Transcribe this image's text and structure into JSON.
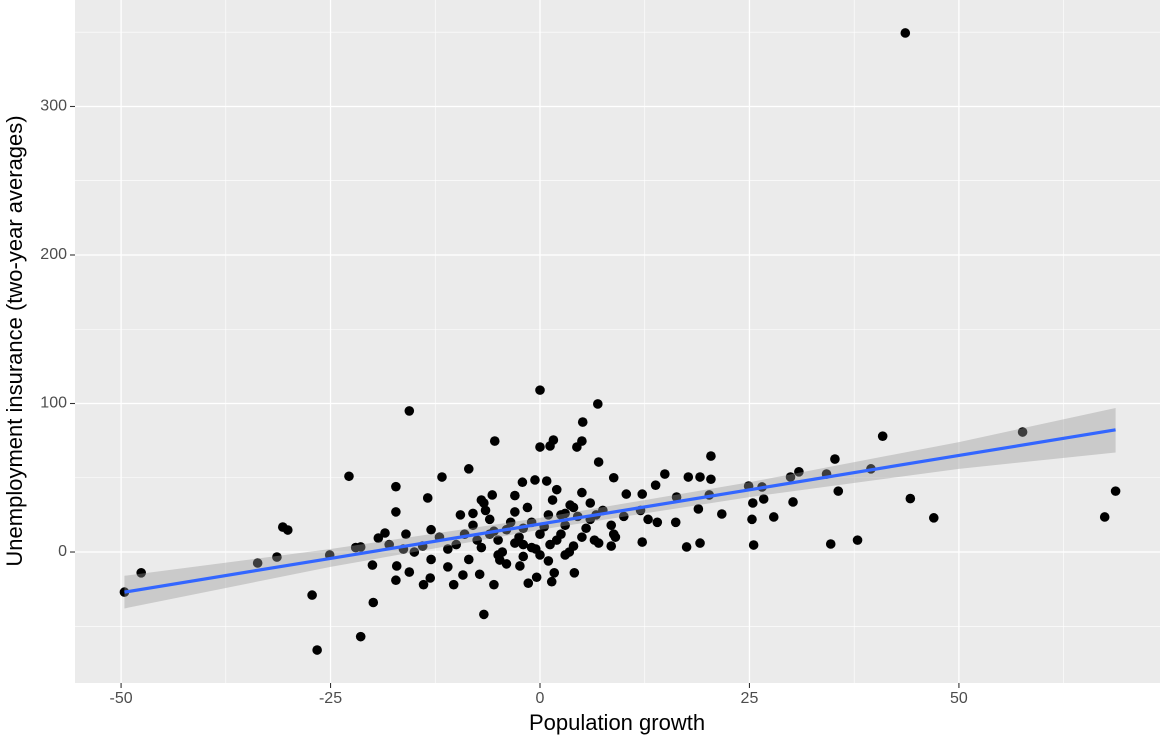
{
  "chart_data": {
    "type": "scatter",
    "x_label": "Population growth",
    "y_label": "Unemployment insurance (two-year averages)",
    "xlim": [
      -55.5,
      74
    ],
    "ylim": [
      -88.2,
      371.7
    ],
    "xticks": [
      -50,
      -25,
      0,
      25,
      50
    ],
    "yticks": [
      0,
      100,
      200,
      300
    ],
    "x_minor_grid": [
      -37.5,
      -12.5,
      12.5,
      37.5,
      62.5
    ],
    "y_minor_grid": [
      -50,
      50,
      150,
      250,
      350
    ],
    "grid": true,
    "background": "#ebebeb",
    "color": "#000000",
    "x": [
      43.6,
      -49.6,
      -47.6,
      67.4,
      68.7,
      57.6,
      40.9,
      44.2,
      47,
      37.9,
      34.7,
      35.6,
      35.2,
      34.2,
      39.5,
      30.9,
      30.2,
      29.9,
      27.9,
      26.7,
      26.5,
      25.3,
      25.5,
      24.9,
      25.4,
      21.7,
      20.4,
      20.4,
      20.2,
      19.1,
      18.9,
      17.7,
      19.1,
      17.5,
      14.9,
      16.3,
      16.2,
      13.8,
      12.9,
      12.2,
      12.2,
      10.3,
      8.8,
      8.8,
      8.5,
      7.0,
      6.9,
      5.1,
      5.0,
      0,
      -5.4,
      0,
      1.2,
      1.6,
      4.4,
      -15.6,
      -22.8,
      -11.7,
      -8.5,
      -17.2,
      -13.4,
      -17.2,
      -30.7,
      -30.1,
      -18.5,
      -19.3,
      -33.7,
      -31.4,
      -25.1,
      -27.2,
      -26.6,
      -21.4,
      -19.9,
      -21.4,
      -20,
      -17.2,
      -15.6,
      -13.9,
      -13.1,
      -17.1,
      -16.3,
      -6.7,
      -5.5,
      -10.3,
      -1.4,
      1.4,
      -0.4,
      -2.4,
      -4.8,
      -7.2,
      -9.2,
      1.7,
      4.1,
      -0.6,
      0.8,
      -2.1,
      -6.7,
      -5.7,
      2.5,
      3.6,
      6.7,
      -10,
      -9,
      -8,
      -7,
      -6,
      -5,
      -4,
      -3,
      -2,
      -1,
      0,
      1,
      2,
      3,
      4,
      5,
      6,
      7,
      -11,
      -12,
      -9.5,
      -8.5,
      -7.5,
      -6.5,
      -5.5,
      -4.5,
      -3.5,
      -2.5,
      -1.5,
      -0.5,
      0.5,
      1.5,
      2.5,
      3.5,
      4.5,
      5.5,
      6.5,
      7.5,
      8.5,
      -14,
      -13,
      -4,
      -2,
      1,
      3,
      -7,
      -3,
      2,
      5,
      -1,
      0,
      1.2,
      -6,
      -3,
      4,
      6,
      -8,
      -2,
      3,
      -5,
      9,
      10,
      12,
      14,
      -15,
      -13,
      -11,
      -18,
      -22,
      -16
    ],
    "values": [
      349.5,
      -27,
      -14,
      23.6,
      41,
      80.8,
      78,
      36,
      23,
      8,
      5.4,
      41,
      62.6,
      52.5,
      56,
      54,
      33.7,
      50.5,
      23.6,
      35.7,
      43.8,
      22,
      4.7,
      44.4,
      33,
      25.6,
      64.6,
      49,
      38.4,
      50.5,
      29,
      50.5,
      6,
      3.4,
      52.5,
      37,
      20,
      45,
      22,
      6.7,
      39,
      39,
      50,
      12,
      4,
      60.6,
      99.7,
      87.5,
      74.7,
      109,
      74.7,
      70.7,
      71.4,
      75.4,
      70.7,
      95,
      51,
      50.5,
      56,
      44,
      36.4,
      27,
      16.8,
      14.8,
      12.8,
      9.4,
      -7.4,
      -3.4,
      -2,
      -29,
      -66,
      -57,
      -34,
      3.4,
      -8.8,
      -19,
      -13.5,
      -22,
      -17.5,
      -9.4,
      2,
      -42,
      -22,
      -22,
      -21,
      -20,
      -17,
      -9.4,
      -5.4,
      -15,
      -15.5,
      -14,
      -14,
      48.5,
      47.8,
      47,
      33,
      38.4,
      25,
      31.6,
      25,
      5,
      12,
      18,
      3,
      22,
      8,
      15,
      27,
      5,
      20,
      12,
      25,
      8,
      18,
      30,
      10,
      22,
      6,
      2,
      10,
      25,
      -5,
      8,
      28,
      14,
      0,
      20,
      10,
      30,
      2,
      17,
      35,
      12,
      0,
      24,
      16,
      8,
      28,
      18,
      4,
      15,
      -8,
      -3,
      -6,
      -2,
      35,
      38,
      42,
      40,
      3,
      -2,
      5,
      12,
      6,
      4,
      33,
      26,
      16,
      26,
      -2,
      10,
      24,
      28,
      20,
      0,
      -5,
      -10,
      5,
      3,
      12
    ],
    "fit": {
      "color": "#3366ff",
      "band_color": "#999999",
      "x": [
        -49.6,
        -25,
        0,
        25,
        50,
        68.7
      ],
      "values": [
        -27,
        -4.3,
        18.8,
        41.9,
        65,
        82.3
      ],
      "lower": [
        -38,
        -10,
        15,
        37,
        56,
        67
      ],
      "upper": [
        -16,
        2,
        23,
        47,
        74,
        97
      ]
    }
  }
}
